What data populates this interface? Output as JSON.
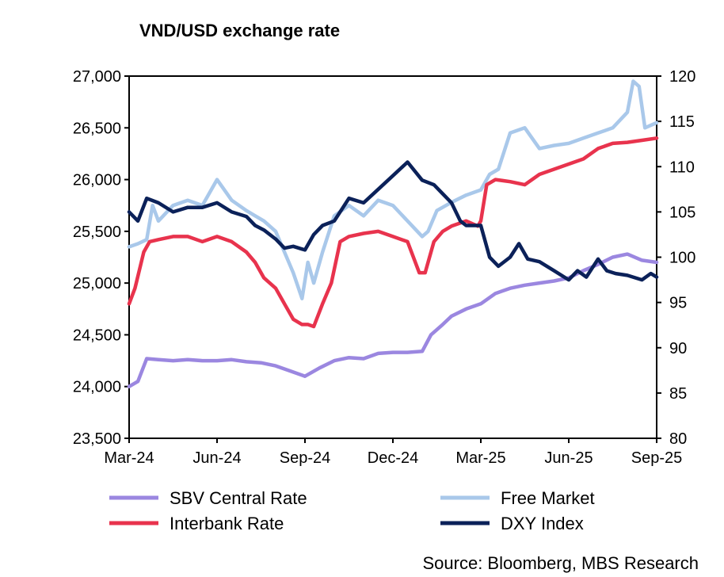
{
  "chart_data": {
    "type": "line",
    "title": "VND/USD exchange rate",
    "source": "Source: Bloomberg, MBS Research",
    "x_unit": "months since Mar-24",
    "x_ticks": [
      {
        "v": 0,
        "label": "Mar-24"
      },
      {
        "v": 3,
        "label": "Jun-24"
      },
      {
        "v": 6,
        "label": "Sep-24"
      },
      {
        "v": 9,
        "label": "Dec-24"
      },
      {
        "v": 12,
        "label": "Mar-25"
      },
      {
        "v": 15,
        "label": "Jun-25"
      },
      {
        "v": 18,
        "label": "Sep-25"
      }
    ],
    "xlim": [
      0,
      18
    ],
    "y_left": {
      "lim": [
        23500,
        27000
      ],
      "ticks": [
        {
          "v": 23500,
          "label": "23,500"
        },
        {
          "v": 24000,
          "label": "24,000"
        },
        {
          "v": 24500,
          "label": "24,500"
        },
        {
          "v": 25000,
          "label": "25,000"
        },
        {
          "v": 25500,
          "label": "25,500"
        },
        {
          "v": 26000,
          "label": "26,000"
        },
        {
          "v": 26500,
          "label": "26,500"
        },
        {
          "v": 27000,
          "label": "27,000"
        }
      ]
    },
    "y_right": {
      "lim": [
        80,
        120
      ],
      "ticks": [
        {
          "v": 80,
          "label": "80"
        },
        {
          "v": 85,
          "label": "85"
        },
        {
          "v": 90,
          "label": "90"
        },
        {
          "v": 95,
          "label": "95"
        },
        {
          "v": 100,
          "label": "100"
        },
        {
          "v": 105,
          "label": "105"
        },
        {
          "v": 110,
          "label": "110"
        },
        {
          "v": 115,
          "label": "115"
        },
        {
          "v": 120,
          "label": "120"
        }
      ]
    },
    "legend": "bottom",
    "series": [
      {
        "name": "SBV Central Rate",
        "axis": "left",
        "color": "#9b87e0",
        "x": [
          0,
          0.3,
          0.6,
          1,
          1.5,
          2,
          2.5,
          3,
          3.5,
          4,
          4.5,
          5,
          5.5,
          6,
          6.5,
          7,
          7.5,
          8,
          8.5,
          9,
          9.5,
          10,
          10.3,
          10.7,
          11,
          11.5,
          12,
          12.5,
          13,
          13.5,
          14,
          14.5,
          15,
          15.5,
          16,
          16.5,
          17,
          17.5,
          18
        ],
        "y": [
          24000,
          24050,
          24270,
          24260,
          24250,
          24260,
          24250,
          24250,
          24260,
          24240,
          24230,
          24200,
          24150,
          24100,
          24180,
          24250,
          24280,
          24270,
          24320,
          24330,
          24330,
          24340,
          24500,
          24600,
          24680,
          24750,
          24800,
          24900,
          24950,
          24980,
          25000,
          25020,
          25050,
          25120,
          25180,
          25250,
          25280,
          25220,
          25200
        ]
      },
      {
        "name": "Free Market",
        "axis": "left",
        "color": "#a9c8ea",
        "x": [
          0,
          0.3,
          0.6,
          0.8,
          1,
          1.5,
          2,
          2.5,
          3,
          3.5,
          4,
          4.3,
          4.6,
          5,
          5.3,
          5.6,
          5.9,
          6.1,
          6.3,
          6.6,
          7,
          7.5,
          8,
          8.5,
          9,
          9.5,
          10,
          10.2,
          10.5,
          11,
          11.5,
          12,
          12.3,
          12.6,
          13,
          13.5,
          14,
          14.5,
          15,
          15.5,
          16,
          16.5,
          17,
          17.2,
          17.4,
          17.6,
          18
        ],
        "y": [
          25350,
          25380,
          25420,
          25750,
          25600,
          25750,
          25800,
          25750,
          26000,
          25800,
          25700,
          25650,
          25600,
          25500,
          25300,
          25100,
          24850,
          25200,
          25000,
          25300,
          25650,
          25750,
          25650,
          25800,
          25750,
          25600,
          25450,
          25500,
          25700,
          25780,
          25850,
          25900,
          26050,
          26100,
          26450,
          26500,
          26300,
          26330,
          26350,
          26400,
          26450,
          26500,
          26650,
          26950,
          26900,
          26500,
          26550
        ]
      },
      {
        "name": "Interbank Rate",
        "axis": "left",
        "color": "#e8334d",
        "x": [
          0,
          0.2,
          0.5,
          0.7,
          1,
          1.5,
          2,
          2.5,
          3,
          3.5,
          4,
          4.3,
          4.6,
          5,
          5.3,
          5.6,
          5.9,
          6.1,
          6.3,
          6.6,
          6.9,
          7.2,
          7.5,
          8,
          8.5,
          9,
          9.5,
          9.9,
          10.1,
          10.4,
          10.7,
          11,
          11.5,
          11.9,
          12,
          12.2,
          12.5,
          13,
          13.5,
          14,
          14.5,
          15,
          15.5,
          16,
          16.5,
          17,
          17.5,
          18
        ],
        "y": [
          24800,
          24950,
          25300,
          25400,
          25420,
          25450,
          25450,
          25400,
          25450,
          25400,
          25300,
          25200,
          25050,
          24950,
          24800,
          24650,
          24600,
          24600,
          24580,
          24800,
          25000,
          25400,
          25450,
          25480,
          25500,
          25450,
          25400,
          25100,
          25100,
          25400,
          25500,
          25550,
          25600,
          25550,
          25600,
          25950,
          26000,
          25980,
          25950,
          26050,
          26100,
          26150,
          26200,
          26300,
          26350,
          26360,
          26380,
          26400
        ]
      },
      {
        "name": "DXY Index",
        "axis": "right",
        "color": "#0b2159",
        "x": [
          0,
          0.3,
          0.6,
          1,
          1.5,
          2,
          2.5,
          3,
          3.5,
          4,
          4.3,
          4.6,
          5,
          5.3,
          5.6,
          6,
          6.3,
          6.6,
          7,
          7.5,
          8,
          8.5,
          9,
          9.5,
          10,
          10.4,
          10.7,
          11,
          11.3,
          11.5,
          12,
          12.3,
          12.6,
          13,
          13.3,
          13.6,
          14,
          14.5,
          15,
          15.3,
          15.6,
          16,
          16.3,
          16.6,
          17,
          17.5,
          17.8,
          18
        ],
        "y": [
          105,
          104,
          106.5,
          106,
          105,
          105.5,
          105.5,
          106,
          105,
          104.5,
          103.5,
          103,
          102,
          101,
          101.2,
          100.8,
          102.5,
          103.5,
          104,
          106.5,
          106,
          107.5,
          109,
          110.5,
          108.5,
          108,
          107,
          106,
          104,
          103.5,
          103.5,
          100,
          99,
          100,
          101.5,
          99.8,
          99.5,
          98.5,
          97.5,
          98.5,
          97.8,
          99.8,
          98.5,
          98.2,
          98,
          97.5,
          98.2,
          97.8
        ]
      }
    ]
  }
}
